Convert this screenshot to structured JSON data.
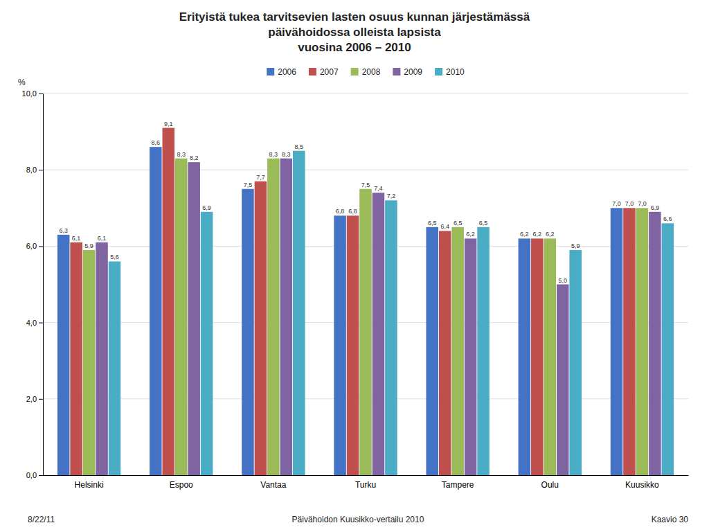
{
  "chart_data": {
    "type": "bar",
    "title": "Erityistä tukea tarvitsevien lasten osuus kunnan järjestämässä\npäivähoidossa olleista lapsista\nvuosina 2006 – 2010",
    "y_label": "%",
    "annotations": [
      "8/22/11",
      "Päivähoidon Kuusikko-vertailu 2010",
      "Kaavio 30"
    ],
    "categories": [
      "Helsinki",
      "Espoo",
      "Vantaa",
      "Turku",
      "Tampere",
      "Oulu",
      "Kuusikko"
    ],
    "series": [
      {
        "name": "2006",
        "color": "#4472c4",
        "values": [
          6.3,
          8.6,
          7.5,
          6.8,
          6.5,
          6.2,
          7.0
        ],
        "value_labels": [
          "6,3",
          "8,6",
          "7,5",
          "6,8",
          "6,5",
          "6,2",
          "7,0"
        ]
      },
      {
        "name": "2007",
        "color": "#c0504d",
        "values": [
          6.1,
          9.1,
          7.7,
          6.8,
          6.4,
          6.2,
          7.0
        ],
        "value_labels": [
          "6,1",
          "9,1",
          "7,7",
          "6,8",
          "6,4",
          "6,2",
          "7,0"
        ]
      },
      {
        "name": "2008",
        "color": "#9bbb59",
        "values": [
          5.9,
          8.3,
          8.3,
          7.5,
          6.5,
          6.2,
          7.0
        ],
        "value_labels": [
          "5,9",
          "8,3",
          "8,3",
          "7,5",
          "6,5",
          "6,2",
          "7,0"
        ]
      },
      {
        "name": "2009",
        "color": "#8064a2",
        "values": [
          6.1,
          8.2,
          8.3,
          7.4,
          6.2,
          5.0,
          6.9
        ],
        "value_labels": [
          "6,1",
          "8,2",
          "8,3",
          "7,4",
          "6,2",
          "5,0",
          "6,9"
        ]
      },
      {
        "name": "2010",
        "color": "#4bacc6",
        "values": [
          5.6,
          6.9,
          8.5,
          7.2,
          6.5,
          5.9,
          6.6
        ],
        "value_labels": [
          "5,6",
          "6,9",
          "8,5",
          "7,2",
          "6,5",
          "5,9",
          "6,6"
        ]
      }
    ],
    "ylim": [
      0,
      10.0
    ],
    "yticks": [
      {
        "value": 0.0,
        "label": "0,0"
      },
      {
        "value": 2.0,
        "label": "2,0"
      },
      {
        "value": 4.0,
        "label": "4,0"
      },
      {
        "value": 6.0,
        "label": "6,0"
      },
      {
        "value": 8.0,
        "label": "8,0"
      },
      {
        "value": 10.0,
        "label": "10,0"
      }
    ],
    "grid": true,
    "legend": "upper center",
    "data_labels": true
  }
}
